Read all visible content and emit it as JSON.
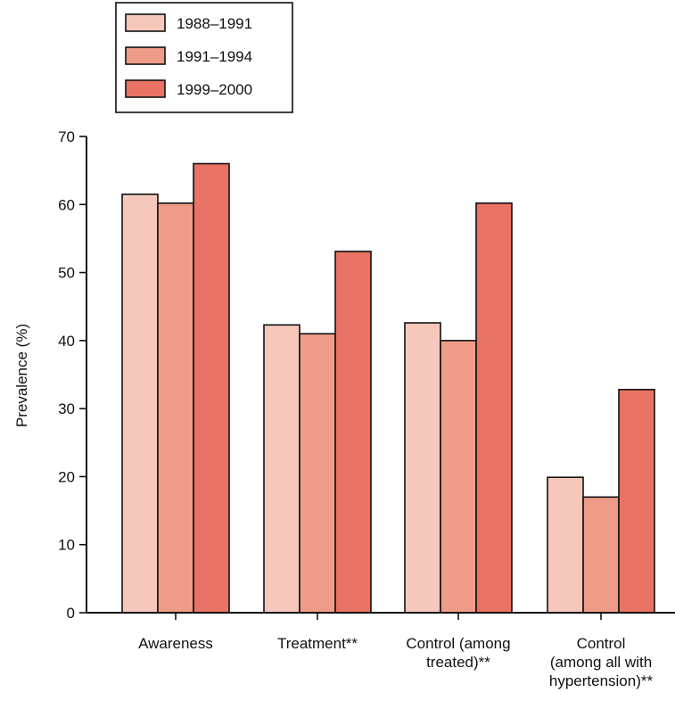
{
  "chart_data": {
    "type": "bar",
    "categories": [
      [
        "Awareness"
      ],
      [
        "Treatment**"
      ],
      [
        "Control (among",
        "treated)**"
      ],
      [
        "Control",
        "(among all with",
        "hypertension)**"
      ]
    ],
    "series": [
      {
        "name": "1988–1991",
        "color": "#f6c8bc",
        "values": [
          61.5,
          42.3,
          42.6,
          19.9
        ]
      },
      {
        "name": "1991–1994",
        "color": "#ee9c88",
        "values": [
          60.2,
          41.0,
          40.0,
          17.0
        ]
      },
      {
        "name": "1999–2000",
        "color": "#e87264",
        "values": [
          66.0,
          53.1,
          60.2,
          32.8
        ]
      }
    ],
    "ylabel": "Prevalence (%)",
    "ylim": [
      0,
      70
    ],
    "yticks": [
      0,
      10,
      20,
      30,
      40,
      50,
      60,
      70
    ],
    "grid": false,
    "legend_position": "top-left"
  }
}
